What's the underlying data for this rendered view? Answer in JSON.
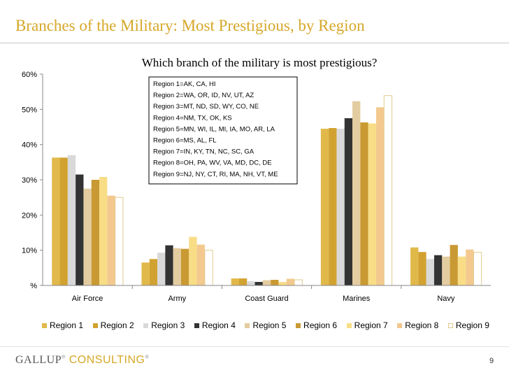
{
  "slide": {
    "title": "Branches of the Military: Most Prestigious, by Region",
    "brand_part1": "GALLUP",
    "brand_part2": "CONSULTING",
    "brand_mark": "®",
    "page_number": "9"
  },
  "colors": {
    "title": "#d6a728",
    "series": [
      "#e1b84a",
      "#d2a231",
      "#d9d9d9",
      "#333333",
      "#e3cca0",
      "#c99a33",
      "#f8dd86",
      "#f3c98f",
      "#ffffff"
    ]
  },
  "chart_data": {
    "type": "bar",
    "title": "Which branch of the military is most prestigious?",
    "categories": [
      "Air Force",
      "Army",
      "Coast Guard",
      "Marines",
      "Navy"
    ],
    "y_tick_labels": [
      "%",
      "10%",
      "20%",
      "30%",
      "40%",
      "50%",
      "60%"
    ],
    "ylim": [
      0,
      60
    ],
    "grid": false,
    "legend_position": "bottom",
    "series": [
      {
        "name": "Region 1",
        "values": [
          36.3,
          6.5,
          2.0,
          44.5,
          10.8
        ]
      },
      {
        "name": "Region 2",
        "values": [
          36.3,
          7.5,
          2.0,
          44.7,
          9.5
        ]
      },
      {
        "name": "Region 3",
        "values": [
          37.0,
          9.3,
          1.2,
          44.5,
          7.5
        ]
      },
      {
        "name": "Region 4",
        "values": [
          31.5,
          11.4,
          1.0,
          47.5,
          8.6
        ]
      },
      {
        "name": "Region 5",
        "values": [
          27.5,
          10.6,
          1.5,
          52.3,
          8.2
        ]
      },
      {
        "name": "Region 6",
        "values": [
          30.0,
          10.4,
          1.6,
          46.3,
          11.5
        ]
      },
      {
        "name": "Region 7",
        "values": [
          30.8,
          13.8,
          1.0,
          46.0,
          8.2
        ]
      },
      {
        "name": "Region 8",
        "values": [
          25.5,
          11.6,
          1.9,
          50.6,
          10.2
        ]
      },
      {
        "name": "Region 9",
        "values": [
          25.0,
          10.0,
          1.6,
          53.9,
          9.4
        ]
      }
    ],
    "annotation_lines": [
      "Region 1=AK, CA, HI",
      "Region 2=WA, OR, ID, NV, UT, AZ",
      "Region 3=MT, ND, SD, WY, CO, NE",
      "Region 4=NM, TX, OK, KS",
      "Region 5=MN, WI, IL, MI, IA, MO, AR, LA",
      "Region 6=MS, AL, FL",
      "Region 7=IN, KY, TN, NC, SC, GA",
      "Region 8=OH, PA, WV, VA, MD, DC, DE",
      "Region 9=NJ, NY, CT, RI, MA, NH, VT, ME"
    ]
  }
}
